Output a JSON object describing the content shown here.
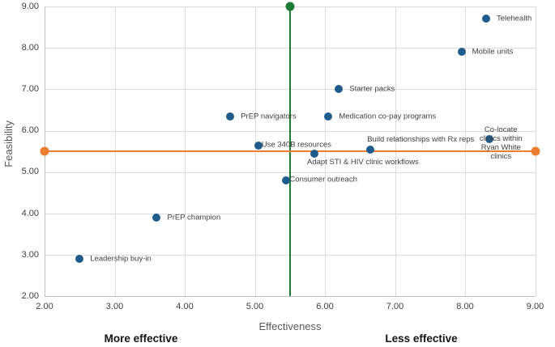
{
  "chart_data": {
    "type": "scatter",
    "title": "",
    "xlabel": "Effectiveness",
    "ylabel": "Feasibility",
    "xlim": [
      2,
      9
    ],
    "ylim": [
      2,
      9
    ],
    "grid": true,
    "x_ticks": {
      "values": [
        2,
        3,
        4,
        5,
        6,
        7,
        8,
        9
      ],
      "labels": [
        "2.00",
        "3.00",
        "4.00",
        "5.00",
        "6.00",
        "7.00",
        "8.00",
        "9.00"
      ]
    },
    "y_ticks": {
      "values": [
        2,
        3,
        4,
        5,
        6,
        7,
        8,
        9
      ],
      "labels": [
        "2.00",
        "3.00",
        "4.00",
        "5.00",
        "6.00",
        "7.00",
        "8.00",
        "9.00"
      ]
    },
    "points": [
      {
        "id": "telehealth",
        "label": "Telehealth",
        "x": 8.3,
        "y": 8.7,
        "label_pos": "right"
      },
      {
        "id": "mobile-units",
        "label": "Mobile units",
        "x": 7.95,
        "y": 7.9,
        "label_pos": "right"
      },
      {
        "id": "starter-packs",
        "label": "Starter packs",
        "x": 6.2,
        "y": 7.0,
        "label_pos": "right"
      },
      {
        "id": "prep-navigators",
        "label": "PrEP navigators",
        "x": 4.65,
        "y": 6.35,
        "label_pos": "right"
      },
      {
        "id": "medication-co-pay-programs",
        "label": "Medication co-pay programs",
        "x": 6.05,
        "y": 6.35,
        "label_pos": "right"
      },
      {
        "id": "co-locate-clinics-ryan-white",
        "label": "Co-locate clinics within Ryan White\nclinics",
        "x": 8.35,
        "y": 5.8,
        "label_pos": "above-center"
      },
      {
        "id": "use-340b-resources",
        "label": "Use 340B resources",
        "x": 5.05,
        "y": 5.65,
        "label_pos": "right-tight"
      },
      {
        "id": "build-relationships-with-rx-reps",
        "label": "Build relationships with Rx reps",
        "x": 6.65,
        "y": 5.55,
        "label_pos": "above"
      },
      {
        "id": "adapt-sti-hiv-clinic-workflows",
        "label": "Adapt STI & HIV clinic workflows",
        "x": 5.85,
        "y": 5.45,
        "label_pos": "below"
      },
      {
        "id": "consumer-outreach",
        "label": "Consumer outreach",
        "x": 5.45,
        "y": 4.8,
        "label_pos": "right-tight"
      },
      {
        "id": "prep-champion",
        "label": "PrEP champion",
        "x": 3.6,
        "y": 3.9,
        "label_pos": "right"
      },
      {
        "id": "leadership-buy-in",
        "label": "Leadership buy-in",
        "x": 2.5,
        "y": 2.9,
        "label_pos": "right"
      }
    ],
    "reference_lines": [
      {
        "id": "effectiveness-midline",
        "orientation": "vertical",
        "value": 5.5,
        "color": "#1E7B34",
        "markers": [
          "top"
        ]
      },
      {
        "id": "feasibility-midline",
        "orientation": "horizontal",
        "value": 5.5,
        "color": "#ED7D31",
        "markers": [
          "left",
          "right"
        ]
      }
    ],
    "annotations": [
      {
        "id": "more-effective",
        "text": "More effective",
        "position": "bottom-left"
      },
      {
        "id": "less-effective",
        "text": "Less effective",
        "position": "bottom-right"
      }
    ],
    "colors": {
      "point": "#1F5C8B",
      "vline": "#1E7B34",
      "hline": "#ED7D31",
      "gridline": "#DCDCDC",
      "axis_line": "#BFBFBF",
      "tick_label": "#404040",
      "data_label": "#3F3F3F",
      "axis_title": "#595959",
      "annotation": "#141414"
    },
    "legend": "none"
  }
}
